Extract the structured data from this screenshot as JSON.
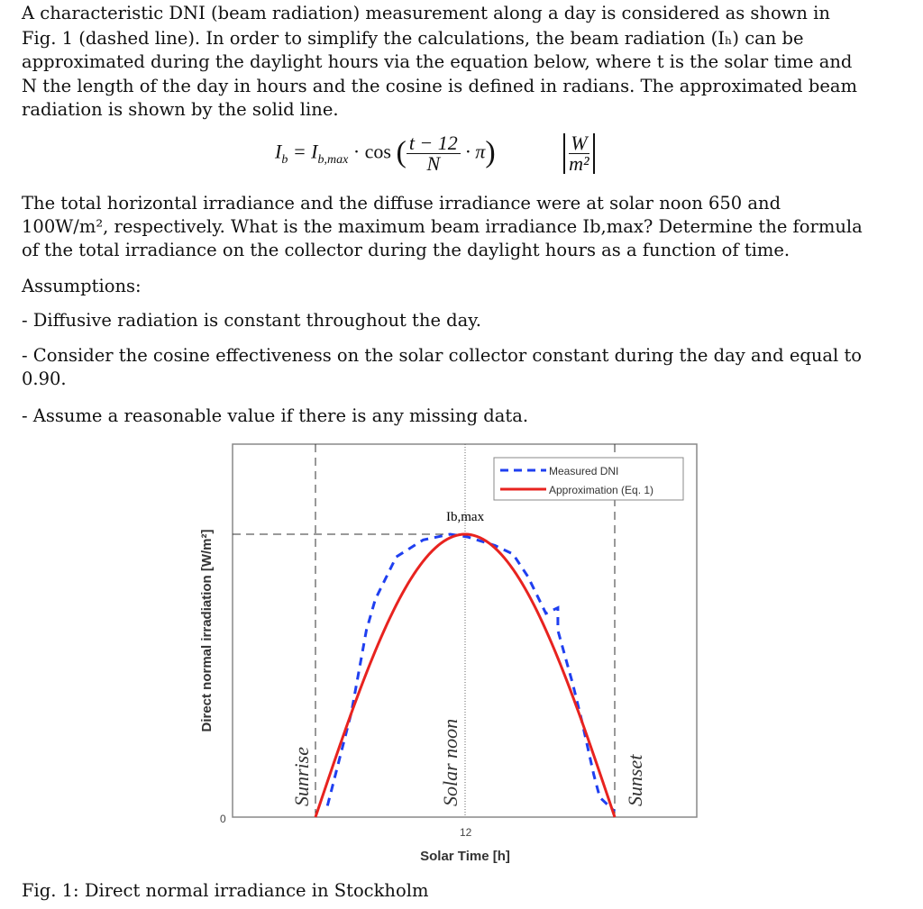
{
  "text": {
    "p1": [
      "A characteristic DNI (beam radiation) measurement along a day is considered as shown in",
      "Fig. 1 (dashed line). In order to simplify the calculations, the beam radiation (Iₕ) can be",
      "approximated during the daylight hours via the equation below, where t is the solar time and",
      "N the length of the day in hours and the cosine is defined in radians. The approximated beam",
      "radiation is shown by the solid line."
    ],
    "equation": "I_b = I_b,max · cos((t − 12)/N · π)   [W/m²]",
    "eq_lhs": "I",
    "eq_lhs_sub": "b",
    "eq_mid": "= I",
    "eq_mid_sub": "b,max",
    "eq_cos": "· cos",
    "eq_num": "t − 12",
    "eq_den": "N",
    "eq_pi": "· π",
    "eq_unit_num": "W",
    "eq_unit_den": "m²",
    "p2": [
      "The total horizontal irradiance and the diffuse irradiance were at solar noon 650 and",
      "100W/m², respectively. What is the maximum beam irradiance Ib,max? Determine the formula",
      "of the total irradiance on the collector during the daylight hours as a function of time."
    ],
    "assumptions_title": "Assumptions:",
    "assumptions": [
      "- Diffusive radiation is constant throughout the day.",
      "- Consider the cosine effectiveness on the solar collector constant during the day and equal to",
      "0.90.",
      "- Assume a reasonable value if there is any missing data."
    ],
    "caption": "Fig. 1: Direct normal irradiance in Stockholm"
  },
  "chart_data": {
    "type": "line",
    "xlabel": "Solar Time [h]",
    "ylabel": "Direct normal irradiation [W/m²]",
    "x_ticks": [
      "12"
    ],
    "y_ticks": [
      "0"
    ],
    "annotations": [
      "Sunrise",
      "Solar noon",
      "Sunset",
      "Ib,max"
    ],
    "legend": {
      "position": "top-right",
      "entries": [
        "Measured DNI",
        "Approximation (Eq. 1)"
      ]
    },
    "series": [
      {
        "name": "Measured DNI",
        "style": "dashed",
        "color": "#1f3ff0",
        "x_fraction_of_daylight": [
          0.04,
          0.12,
          0.17,
          0.2,
          0.27,
          0.36,
          0.45,
          0.51,
          0.6,
          0.66,
          0.71,
          0.77,
          0.81,
          0.81,
          0.86,
          0.89,
          0.93,
          0.95,
          1.0
        ],
        "y_fraction_of_Ib_max": [
          0.04,
          0.37,
          0.66,
          0.77,
          0.92,
          0.98,
          1.0,
          0.99,
          0.96,
          0.93,
          0.85,
          0.72,
          0.74,
          0.66,
          0.47,
          0.34,
          0.15,
          0.07,
          0.02
        ]
      },
      {
        "name": "Approximation (Eq. 1)",
        "style": "solid",
        "color": "#e8231f",
        "formula": "cos((t-12)/N·π)"
      }
    ]
  }
}
